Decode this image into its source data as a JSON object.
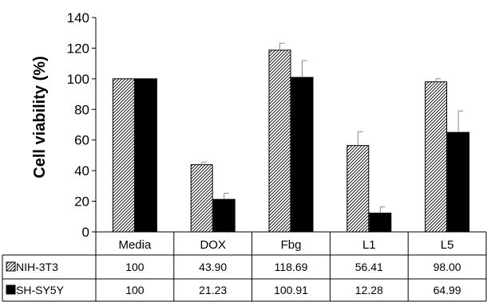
{
  "chart_data": {
    "type": "bar",
    "title": "",
    "xlabel": "",
    "ylabel": "Cell viability (%)",
    "ylim": [
      0,
      140
    ],
    "yticks": [
      0,
      20,
      40,
      60,
      80,
      100,
      120,
      140
    ],
    "categories": [
      "Media",
      "DOX",
      "Fbg",
      "L1",
      "L5"
    ],
    "series": [
      {
        "name": "NIH-3T3",
        "fill": "hatched",
        "color": "#000000",
        "values": [
          100,
          43.9,
          118.69,
          56.41,
          98.0
        ],
        "labels": [
          "100",
          "43.90",
          "118.69",
          "56.41",
          "98.00"
        ],
        "errors": [
          0,
          1.5,
          4.5,
          9,
          2
        ]
      },
      {
        "name": "SH-SY5Y",
        "fill": "solid",
        "color": "#000000",
        "values": [
          100,
          21.23,
          100.91,
          12.28,
          64.99
        ],
        "labels": [
          "100",
          "21.23",
          "100.91",
          "12.28",
          "64.99"
        ],
        "errors": [
          0,
          4,
          11,
          4,
          14
        ]
      }
    ],
    "legend": "data-table-rows",
    "grid": false
  }
}
